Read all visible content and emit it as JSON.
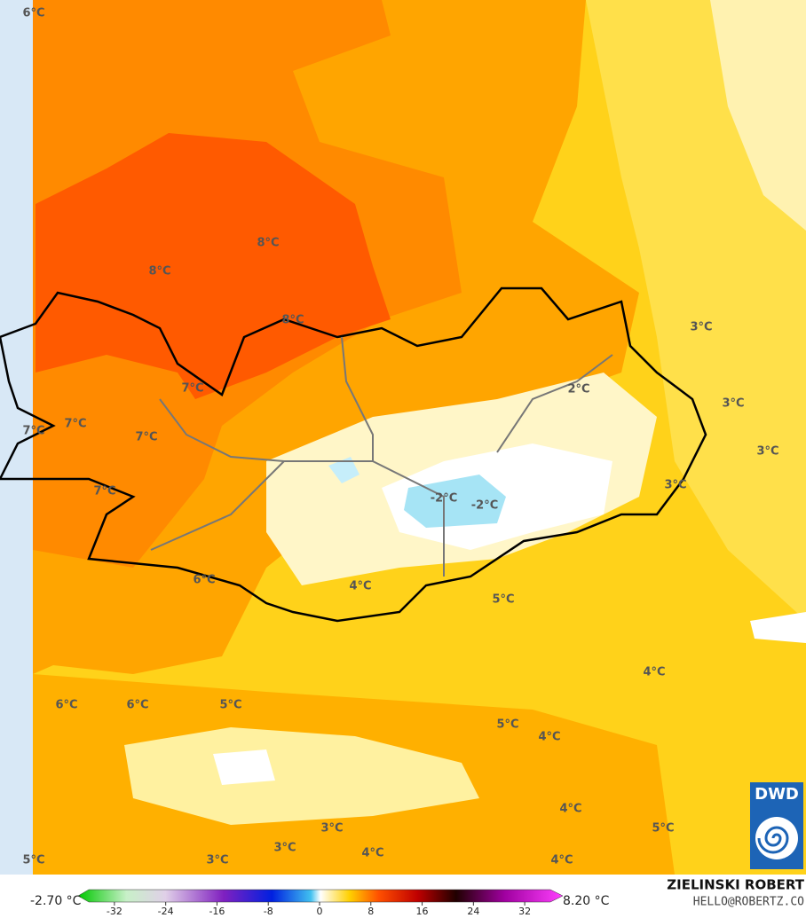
{
  "map": {
    "labels": [
      "6°C",
      "8°C",
      "8°C",
      "8°C",
      "3°C",
      "7°C",
      "2°C",
      "3°C",
      "7°C",
      "7°C",
      "7°C",
      "3°C",
      "7°C",
      "-2°C",
      "-2°C",
      "3°C",
      "6°C",
      "4°C",
      "5°C",
      "4°C",
      "6°C",
      "6°C",
      "5°C",
      "5°C",
      "4°C",
      "4°C",
      "3°C",
      "5°C",
      "3°C",
      "4°C",
      "5°C",
      "3°C",
      "4°C"
    ],
    "logo": "DWD"
  },
  "colorbar": {
    "min_label": "-2.70 °C",
    "max_label": "8.20 °C",
    "ticks": [
      -32,
      -24,
      -16,
      -8,
      0,
      8,
      16,
      24,
      32
    ],
    "range": [
      -36,
      36
    ]
  },
  "credits": {
    "author": "ZIELINSKI ROBERT",
    "contact": "HELLO@ROBERTZ.CO"
  }
}
